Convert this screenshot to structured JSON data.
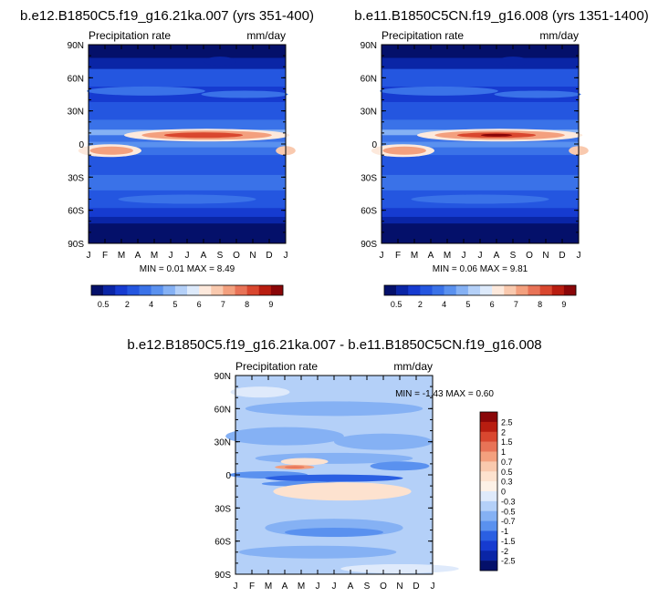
{
  "titles": {
    "left": "b.e12.B1850C5.f19_g16.21ka.007 (yrs 351-400)",
    "right": "b.e11.B1850C5CN.f19_g16.008 (yrs 1351-1400)",
    "bottom": "b.e12.B1850C5.f19_g16.21ka.007 - b.e11.B1850C5CN.f19_g16.008"
  },
  "chart_data": [
    {
      "type": "heatmap",
      "variable_label": "Precipitation rate",
      "units_label": "mm/day",
      "x_tick_labels": [
        "J",
        "F",
        "M",
        "A",
        "M",
        "J",
        "J",
        "A",
        "S",
        "O",
        "N",
        "D",
        "J"
      ],
      "y_tick_labels": [
        "90N",
        "60N",
        "30N",
        "0",
        "30S",
        "60S",
        "90S"
      ],
      "y_tick_values": [
        90,
        60,
        30,
        0,
        -30,
        -60,
        -90
      ],
      "ylim": [
        -90,
        90
      ],
      "stats_text": "MIN =   0.01 MAX =   8.49",
      "colorbar": {
        "orientation": "horizontal",
        "labels": [
          "0.5",
          "2",
          "4",
          "5",
          "6",
          "7",
          "8",
          "9"
        ],
        "colors": [
          "#04106a",
          "#0a25a6",
          "#163bd0",
          "#2456e0",
          "#3a72e8",
          "#5a91ef",
          "#85b1f4",
          "#b4d0f8",
          "#ddeafb",
          "#fde9dc",
          "#f9c9ae",
          "#f3a07e",
          "#e87357",
          "#d9472f",
          "#b81d10",
          "#8a0608"
        ]
      }
    },
    {
      "type": "heatmap",
      "variable_label": "Precipitation rate",
      "units_label": "mm/day",
      "x_tick_labels": [
        "J",
        "F",
        "M",
        "A",
        "M",
        "J",
        "J",
        "A",
        "S",
        "O",
        "N",
        "D",
        "J"
      ],
      "y_tick_labels": [
        "90N",
        "60N",
        "30N",
        "0",
        "30S",
        "60S",
        "90S"
      ],
      "y_tick_values": [
        90,
        60,
        30,
        0,
        -30,
        -60,
        -90
      ],
      "ylim": [
        -90,
        90
      ],
      "stats_text": "MIN =   0.06 MAX =   9.81",
      "colorbar": {
        "orientation": "horizontal",
        "labels": [
          "0.5",
          "2",
          "4",
          "5",
          "6",
          "7",
          "8",
          "9"
        ],
        "colors": [
          "#04106a",
          "#0a25a6",
          "#163bd0",
          "#2456e0",
          "#3a72e8",
          "#5a91ef",
          "#85b1f4",
          "#b4d0f8",
          "#ddeafb",
          "#fde9dc",
          "#f9c9ae",
          "#f3a07e",
          "#e87357",
          "#d9472f",
          "#b81d10",
          "#8a0608"
        ]
      }
    },
    {
      "type": "heatmap",
      "variable_label": "Precipitation rate",
      "units_label": "mm/day",
      "x_tick_labels": [
        "J",
        "F",
        "M",
        "A",
        "M",
        "J",
        "J",
        "A",
        "S",
        "O",
        "N",
        "D",
        "J"
      ],
      "y_tick_labels": [
        "90N",
        "60N",
        "30N",
        "0",
        "30S",
        "60S",
        "90S"
      ],
      "y_tick_values": [
        90,
        60,
        30,
        0,
        -30,
        -60,
        -90
      ],
      "ylim": [
        -90,
        90
      ],
      "stats_text": "MIN =  -1.43 MAX =   0.60",
      "colorbar": {
        "orientation": "vertical",
        "labels": [
          "2.5",
          "2",
          "1.5",
          "1",
          "0.7",
          "0.5",
          "0.3",
          "0",
          "-0.3",
          "-0.5",
          "-0.7",
          "-1",
          "-1.5",
          "-2",
          "-2.5"
        ],
        "colors": [
          "#8a0608",
          "#b81d10",
          "#d9472f",
          "#e87357",
          "#f3a07e",
          "#f9c9ae",
          "#fde2cf",
          "#fdf1e7",
          "#dfeafb",
          "#b4d0f8",
          "#85b1f4",
          "#5a91ef",
          "#2a5fe2",
          "#163bd0",
          "#0a25a6",
          "#04106a"
        ]
      }
    }
  ]
}
